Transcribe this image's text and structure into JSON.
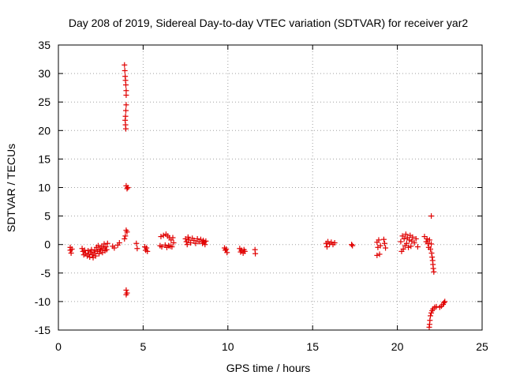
{
  "chart_data": {
    "type": "scatter",
    "title": "Day 208 of 2019, Sidereal Day-to-day VTEC variation (SDTVAR) for receiver yar2",
    "xlabel": "GPS time / hours",
    "ylabel": "SDTVAR / TECUs",
    "xlim": [
      0,
      25
    ],
    "ylim": [
      -15,
      35
    ],
    "xticks": [
      0,
      5,
      10,
      15,
      20,
      25
    ],
    "yticks": [
      -15,
      -10,
      -5,
      0,
      5,
      10,
      15,
      20,
      25,
      30,
      35
    ],
    "xtick_labels": [
      "0",
      "5",
      "10",
      "15",
      "20",
      "25"
    ],
    "ytick_labels": [
      "-15",
      "-10",
      "-5",
      "0",
      "5",
      "10",
      "15",
      "20",
      "25",
      "30",
      "35"
    ],
    "grid": true,
    "marker": "+",
    "color": "#e00000",
    "series": [
      {
        "name": "yar2",
        "points": [
          [
            0.7,
            -0.5
          ],
          [
            0.7,
            -1.0
          ],
          [
            0.75,
            -1.5
          ],
          [
            0.8,
            -0.8
          ],
          [
            1.4,
            -0.7
          ],
          [
            1.45,
            -1.2
          ],
          [
            1.5,
            -1.8
          ],
          [
            1.55,
            -1.0
          ],
          [
            1.6,
            -1.5
          ],
          [
            1.7,
            -2.0
          ],
          [
            1.75,
            -1.1
          ],
          [
            1.8,
            -1.7
          ],
          [
            1.85,
            -2.2
          ],
          [
            1.9,
            -1.3
          ],
          [
            1.95,
            -0.9
          ],
          [
            2.0,
            -1.8
          ],
          [
            2.05,
            -2.3
          ],
          [
            2.1,
            -1.5
          ],
          [
            2.15,
            -1.0
          ],
          [
            2.2,
            -2.0
          ],
          [
            2.25,
            -0.5
          ],
          [
            2.3,
            -1.2
          ],
          [
            2.35,
            -0.2
          ],
          [
            2.4,
            -1.6
          ],
          [
            2.45,
            -0.8
          ],
          [
            2.5,
            -1.0
          ],
          [
            2.55,
            -0.3
          ],
          [
            2.6,
            -1.4
          ],
          [
            2.65,
            -0.6
          ],
          [
            2.7,
            0.1
          ],
          [
            2.75,
            -1.1
          ],
          [
            2.8,
            -0.4
          ],
          [
            2.85,
            -0.9
          ],
          [
            2.9,
            0.2
          ],
          [
            3.2,
            -0.3
          ],
          [
            3.3,
            -0.6
          ],
          [
            3.5,
            -0.1
          ],
          [
            3.6,
            0.3
          ],
          [
            3.9,
            31.5
          ],
          [
            3.92,
            30.5
          ],
          [
            3.94,
            29.5
          ],
          [
            3.96,
            28.8
          ],
          [
            3.98,
            28.0
          ],
          [
            4.0,
            27.0
          ],
          [
            4.0,
            26.2
          ],
          [
            4.0,
            24.5
          ],
          [
            3.98,
            23.5
          ],
          [
            3.96,
            22.5
          ],
          [
            3.94,
            21.8
          ],
          [
            3.96,
            21.0
          ],
          [
            3.98,
            20.3
          ],
          [
            4.0,
            10.3
          ],
          [
            4.05,
            9.8
          ],
          [
            4.1,
            10.0
          ],
          [
            4.0,
            2.5
          ],
          [
            4.05,
            2.2
          ],
          [
            3.95,
            1.5
          ],
          [
            3.9,
            1.0
          ],
          [
            4.0,
            -8.0
          ],
          [
            4.05,
            -8.5
          ],
          [
            4.0,
            -8.8
          ],
          [
            4.6,
            0.2
          ],
          [
            4.65,
            -0.7
          ],
          [
            5.1,
            -0.4
          ],
          [
            5.15,
            -1.0
          ],
          [
            5.2,
            -0.6
          ],
          [
            5.25,
            -1.2
          ],
          [
            6.0,
            -0.2
          ],
          [
            6.05,
            1.4
          ],
          [
            6.1,
            -0.4
          ],
          [
            6.2,
            1.6
          ],
          [
            6.3,
            -0.1
          ],
          [
            6.35,
            1.8
          ],
          [
            6.4,
            -0.5
          ],
          [
            6.45,
            1.5
          ],
          [
            6.5,
            -0.2
          ],
          [
            6.55,
            1.2
          ],
          [
            6.6,
            -0.3
          ],
          [
            6.65,
            0.8
          ],
          [
            6.7,
            -0.4
          ],
          [
            6.75,
            1.2
          ],
          [
            6.8,
            0.3
          ],
          [
            7.5,
            1.0
          ],
          [
            7.55,
            0.5
          ],
          [
            7.6,
            0.0
          ],
          [
            7.65,
            1.3
          ],
          [
            7.7,
            0.8
          ],
          [
            7.8,
            0.3
          ],
          [
            7.9,
            1.1
          ],
          [
            8.0,
            0.7
          ],
          [
            8.1,
            0.2
          ],
          [
            8.2,
            1.0
          ],
          [
            8.3,
            0.5
          ],
          [
            8.4,
            0.9
          ],
          [
            8.5,
            0.2
          ],
          [
            8.55,
            0.7
          ],
          [
            8.6,
            0.4
          ],
          [
            8.65,
            0.0
          ],
          [
            8.7,
            0.6
          ],
          [
            9.8,
            -0.6
          ],
          [
            9.85,
            -1.0
          ],
          [
            9.9,
            -0.8
          ],
          [
            9.95,
            -1.4
          ],
          [
            10.7,
            -0.7
          ],
          [
            10.75,
            -1.3
          ],
          [
            10.8,
            -1.0
          ],
          [
            10.9,
            -1.5
          ],
          [
            10.95,
            -0.9
          ],
          [
            11.0,
            -1.2
          ],
          [
            11.6,
            -0.9
          ],
          [
            11.62,
            -1.6
          ],
          [
            15.8,
            0.2
          ],
          [
            15.85,
            -0.4
          ],
          [
            15.9,
            0.5
          ],
          [
            16.0,
            0.1
          ],
          [
            16.1,
            0.4
          ],
          [
            16.2,
            0.0
          ],
          [
            16.3,
            0.3
          ],
          [
            17.3,
            0.0
          ],
          [
            17.35,
            -0.2
          ],
          [
            18.8,
            0.4
          ],
          [
            18.85,
            -0.5
          ],
          [
            18.9,
            0.8
          ],
          [
            18.95,
            -1.7
          ],
          [
            18.8,
            -1.9
          ],
          [
            19.0,
            -0.2
          ],
          [
            19.2,
            0.9
          ],
          [
            19.25,
            0.2
          ],
          [
            19.3,
            -0.6
          ],
          [
            20.2,
            0.5
          ],
          [
            20.25,
            -1.2
          ],
          [
            20.3,
            1.5
          ],
          [
            20.35,
            -0.8
          ],
          [
            20.4,
            1.0
          ],
          [
            20.45,
            -0.2
          ],
          [
            20.5,
            1.8
          ],
          [
            20.55,
            0.2
          ],
          [
            20.6,
            1.2
          ],
          [
            20.65,
            -0.5
          ],
          [
            20.7,
            0.8
          ],
          [
            20.75,
            1.6
          ],
          [
            20.8,
            -0.3
          ],
          [
            20.85,
            0.6
          ],
          [
            20.9,
            1.3
          ],
          [
            21.0,
            0.3
          ],
          [
            21.1,
            1.0
          ],
          [
            21.2,
            -0.4
          ],
          [
            21.6,
            1.4
          ],
          [
            21.7,
            0.5
          ],
          [
            21.75,
            1.0
          ],
          [
            21.8,
            0.2
          ],
          [
            21.85,
            -0.5
          ],
          [
            21.9,
            0.8
          ],
          [
            21.95,
            -0.8
          ],
          [
            22.0,
            0.1
          ],
          [
            22.02,
            -1.5
          ],
          [
            22.05,
            -2.2
          ],
          [
            22.08,
            -2.8
          ],
          [
            22.1,
            -3.5
          ],
          [
            22.12,
            -4.2
          ],
          [
            22.15,
            -4.8
          ],
          [
            22.0,
            5.0
          ],
          [
            21.9,
            -14.0
          ],
          [
            21.92,
            -13.3
          ],
          [
            21.95,
            -12.5
          ],
          [
            22.0,
            -12.0
          ],
          [
            22.05,
            -11.6
          ],
          [
            22.1,
            -11.3
          ],
          [
            22.2,
            -11.0
          ],
          [
            22.3,
            -10.9
          ],
          [
            22.5,
            -11.0
          ],
          [
            22.6,
            -10.8
          ],
          [
            22.7,
            -10.5
          ],
          [
            22.75,
            -10.2
          ],
          [
            22.8,
            -10.0
          ],
          [
            21.88,
            -14.5
          ]
        ]
      }
    ]
  }
}
